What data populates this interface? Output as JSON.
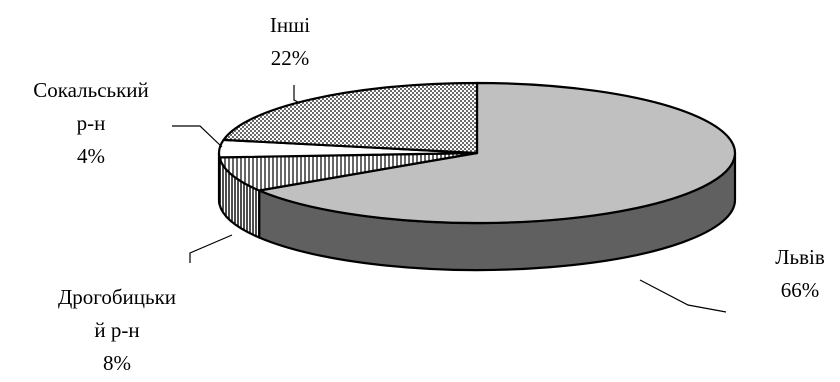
{
  "chart_data": {
    "type": "pie",
    "style": "3d",
    "slices": [
      {
        "label_lines": [
          "Львів"
        ],
        "value_text": "66%",
        "value": 66,
        "pattern": "solid-lightgray",
        "color": "#c0c0c0",
        "side_color": "#606060"
      },
      {
        "label_lines": [
          "Дрогобицьки",
          "й р-н"
        ],
        "value_text": "8%",
        "value": 8,
        "pattern": "vertical-lines",
        "color": "#ffffff",
        "side_color": "#ffffff"
      },
      {
        "label_lines": [
          "Сокальський",
          "р-н"
        ],
        "value_text": "4%",
        "value": 4,
        "pattern": "solid-white",
        "color": "#ffffff",
        "side_color": "#ffffff"
      },
      {
        "label_lines": [
          "Інші"
        ],
        "value_text": "22%",
        "value": 22,
        "pattern": "checkered",
        "color": "#ffffff",
        "side_color": "#ffffff"
      }
    ]
  }
}
